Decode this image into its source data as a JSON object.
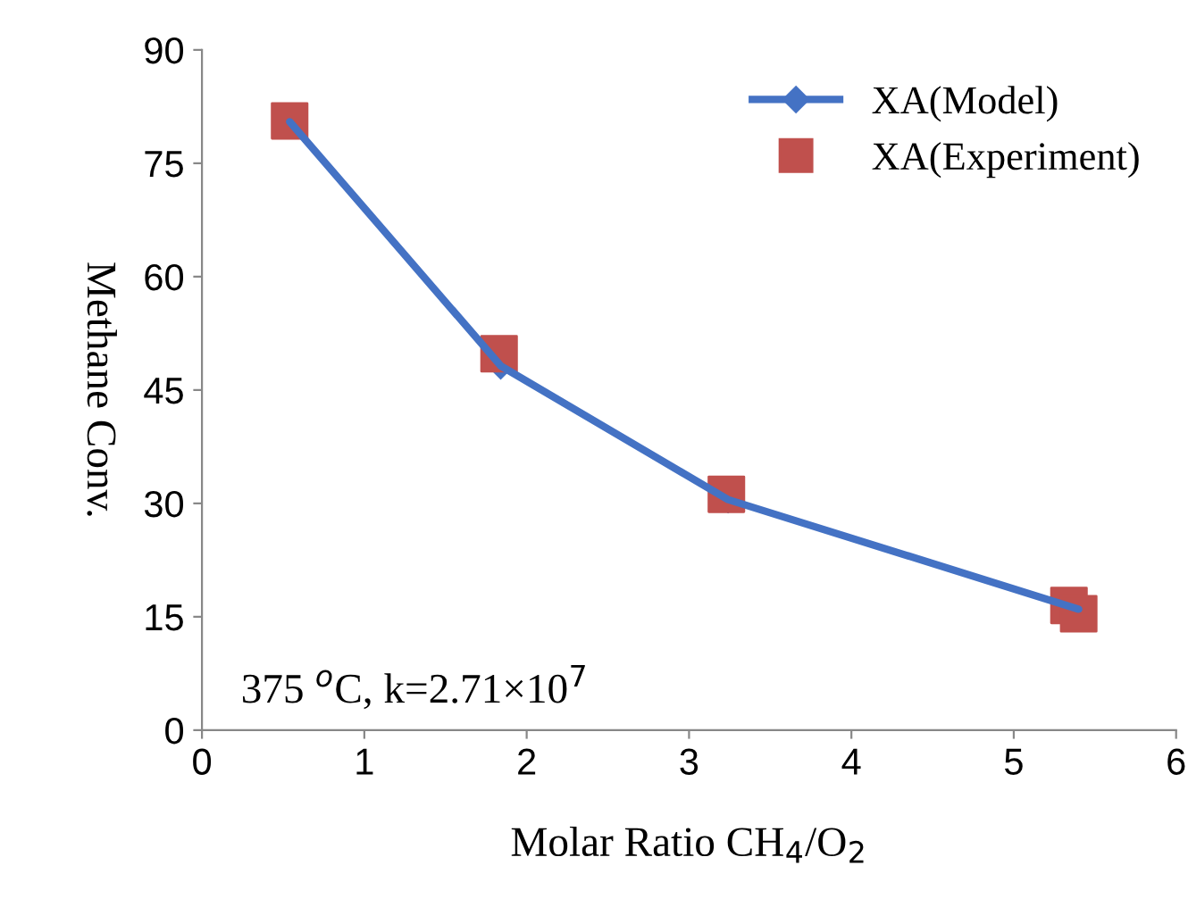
{
  "chart_data": {
    "type": "line",
    "xlabel": "Molar Ratio CH$_{4}$/O$_{2}$",
    "ylabel": "Methane Conv.",
    "xlim": [
      0,
      6
    ],
    "xticks": [
      0,
      1,
      2,
      3,
      4,
      5,
      6
    ],
    "ylim": [
      0,
      90
    ],
    "yticks": [
      0,
      15,
      30,
      45,
      60,
      75,
      90
    ],
    "grid": false,
    "legend": "top right",
    "annotations": [
      "375 $^{o}$C, k=2.71×10$^{7}$"
    ],
    "series": [
      {
        "name": "XA(Model)",
        "color": "#4472c4",
        "marker": "diamond",
        "line_style": "solid",
        "x": [
          0.54,
          1.84,
          3.24,
          5.4
        ],
        "values": [
          80.5,
          48.2,
          30.5,
          16
        ]
      },
      {
        "name": "XA(Experiment)",
        "type": "scatter",
        "color": "#c0504d",
        "marker": "square",
        "x": [
          0.54,
          1.83,
          3.23,
          5.34,
          5.4
        ],
        "values": [
          80.6,
          49.8,
          31.2,
          16.5,
          15.4
        ]
      }
    ]
  }
}
